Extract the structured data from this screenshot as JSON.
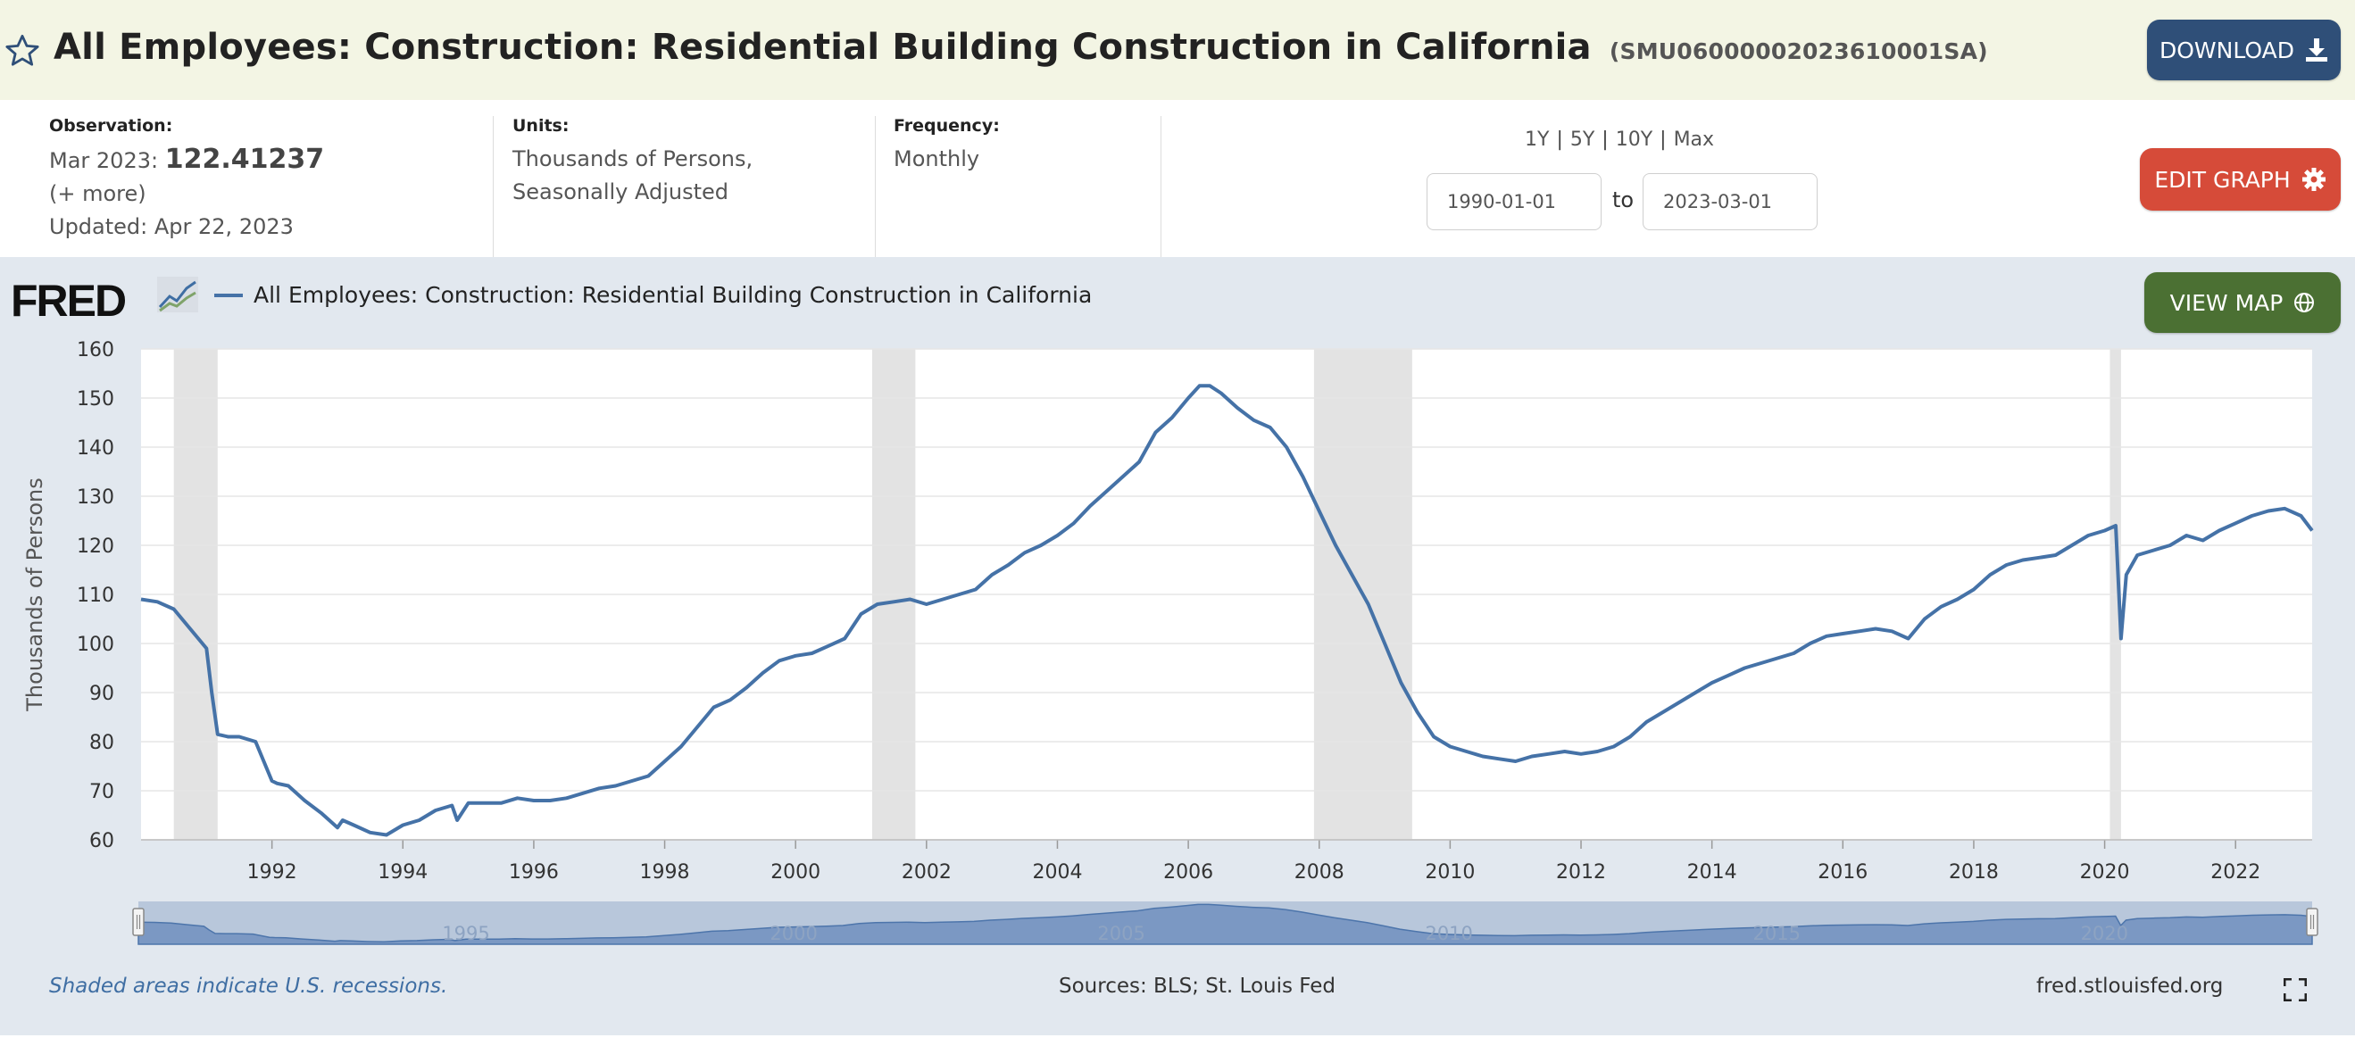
{
  "header": {
    "title": "All Employees: Construction: Residential Building Construction in California",
    "series_id": "(SMU06000002023610001SA)",
    "download_label": "DOWNLOAD",
    "icons": {
      "favorite": "star-icon",
      "download": "download-icon"
    }
  },
  "info": {
    "observation_label": "Observation:",
    "observation_date": "Mar 2023:",
    "observation_value": "122.41237",
    "more_link": "(+ more)",
    "updated": "Updated: Apr 22, 2023",
    "units_label": "Units:",
    "units_line1": "Thousands of Persons,",
    "units_line2": "Seasonally Adjusted",
    "frequency_label": "Frequency:",
    "frequency_value": "Monthly",
    "range_links": [
      "1Y",
      "5Y",
      "10Y",
      "Max"
    ],
    "start_date": "1990-01-01",
    "end_date": "2023-03-01",
    "to_label": "to",
    "edit_graph_label": "EDIT GRAPH",
    "view_map_label": "VIEW MAP"
  },
  "chart_meta": {
    "logo_text": "FRED",
    "legend_label": "All Employees: Construction: Residential Building Construction in California",
    "line_color": "#4572a7",
    "recession_color": "#e3e3e3",
    "navigator_labels": [
      "1995",
      "2000",
      "2005",
      "2010",
      "2015",
      "2020"
    ]
  },
  "footer": {
    "recession_note": "Shaded areas indicate U.S. recessions.",
    "sources": "Sources: BLS; St. Louis Fed",
    "site": "fred.stlouisfed.org"
  },
  "chart_data": {
    "type": "line",
    "title": "",
    "xlabel": "",
    "ylabel": "Thousands of Persons",
    "xlim": [
      1990.0,
      2023.17
    ],
    "ylim": [
      60,
      160
    ],
    "y_ticks": [
      60,
      70,
      80,
      90,
      100,
      110,
      120,
      130,
      140,
      150,
      160
    ],
    "x_ticks": [
      1992,
      1994,
      1996,
      1998,
      2000,
      2002,
      2004,
      2006,
      2008,
      2010,
      2012,
      2014,
      2016,
      2018,
      2020,
      2022
    ],
    "grid": true,
    "legend_position": "top-left",
    "recessions": [
      [
        1990.5,
        1991.17
      ],
      [
        2001.17,
        2001.83
      ],
      [
        2007.92,
        2009.42
      ],
      [
        2020.08,
        2020.25
      ]
    ],
    "series": [
      {
        "name": "All Employees: Construction: Residential Building Construction in California",
        "x": [
          1990.0,
          1990.25,
          1990.5,
          1990.75,
          1991.0,
          1991.08,
          1991.17,
          1991.33,
          1991.5,
          1991.75,
          1992.0,
          1992.08,
          1992.25,
          1992.5,
          1992.75,
          1993.0,
          1993.08,
          1993.25,
          1993.5,
          1993.75,
          1994.0,
          1994.25,
          1994.5,
          1994.75,
          1994.83,
          1995.0,
          1995.25,
          1995.5,
          1995.75,
          1996.0,
          1996.25,
          1996.5,
          1996.75,
          1997.0,
          1997.25,
          1997.5,
          1997.75,
          1998.0,
          1998.25,
          1998.5,
          1998.75,
          1999.0,
          1999.25,
          1999.5,
          1999.75,
          2000.0,
          2000.25,
          2000.5,
          2000.75,
          2001.0,
          2001.25,
          2001.5,
          2001.75,
          2002.0,
          2002.25,
          2002.5,
          2002.75,
          2003.0,
          2003.25,
          2003.5,
          2003.75,
          2004.0,
          2004.25,
          2004.5,
          2004.75,
          2005.0,
          2005.25,
          2005.5,
          2005.75,
          2006.0,
          2006.17,
          2006.33,
          2006.5,
          2006.75,
          2007.0,
          2007.25,
          2007.5,
          2007.75,
          2008.0,
          2008.25,
          2008.5,
          2008.75,
          2009.0,
          2009.25,
          2009.5,
          2009.75,
          2010.0,
          2010.25,
          2010.5,
          2010.75,
          2011.0,
          2011.25,
          2011.5,
          2011.75,
          2012.0,
          2012.25,
          2012.5,
          2012.75,
          2013.0,
          2013.25,
          2013.5,
          2013.75,
          2014.0,
          2014.25,
          2014.5,
          2014.75,
          2015.0,
          2015.25,
          2015.5,
          2015.75,
          2016.0,
          2016.25,
          2016.5,
          2016.75,
          2017.0,
          2017.25,
          2017.5,
          2017.75,
          2018.0,
          2018.25,
          2018.5,
          2018.75,
          2019.0,
          2019.25,
          2019.5,
          2019.75,
          2020.0,
          2020.17,
          2020.25,
          2020.33,
          2020.5,
          2020.75,
          2021.0,
          2021.25,
          2021.5,
          2021.75,
          2022.0,
          2022.25,
          2022.5,
          2022.75,
          2023.0,
          2023.17
        ],
        "values": [
          109,
          108.5,
          107,
          103,
          99,
          90,
          81.5,
          81,
          81,
          80,
          72,
          71.5,
          71,
          68,
          65.5,
          62.5,
          64,
          63,
          61.5,
          61,
          63,
          64,
          66,
          67,
          64,
          67.5,
          67.5,
          67.5,
          68.5,
          68,
          68,
          68.5,
          69.5,
          70.5,
          71,
          72,
          73,
          76,
          79,
          83,
          87,
          88.5,
          91,
          94,
          96.5,
          97.5,
          98,
          99.5,
          101,
          106,
          108,
          108.5,
          109,
          108,
          109,
          110,
          111,
          114,
          116,
          118.5,
          120,
          122,
          124.5,
          128,
          131,
          134,
          137,
          143,
          146,
          150,
          152.5,
          152.5,
          151,
          148,
          145.5,
          144,
          140,
          134,
          127,
          120,
          114,
          108,
          100,
          92,
          86,
          81,
          79,
          78,
          77,
          76.5,
          76,
          77,
          77.5,
          78,
          77.5,
          78,
          79,
          81,
          84,
          86,
          88,
          90,
          92,
          93.5,
          95,
          96,
          97,
          98,
          100,
          101.5,
          102,
          102.5,
          103,
          102.5,
          101,
          105,
          107.5,
          109,
          111,
          114,
          116,
          117,
          117.5,
          118,
          120,
          122,
          123,
          124,
          101,
          114,
          118,
          119,
          120,
          122,
          121,
          123,
          124.5,
          126,
          127,
          127.5,
          126,
          123
        ]
      }
    ]
  }
}
